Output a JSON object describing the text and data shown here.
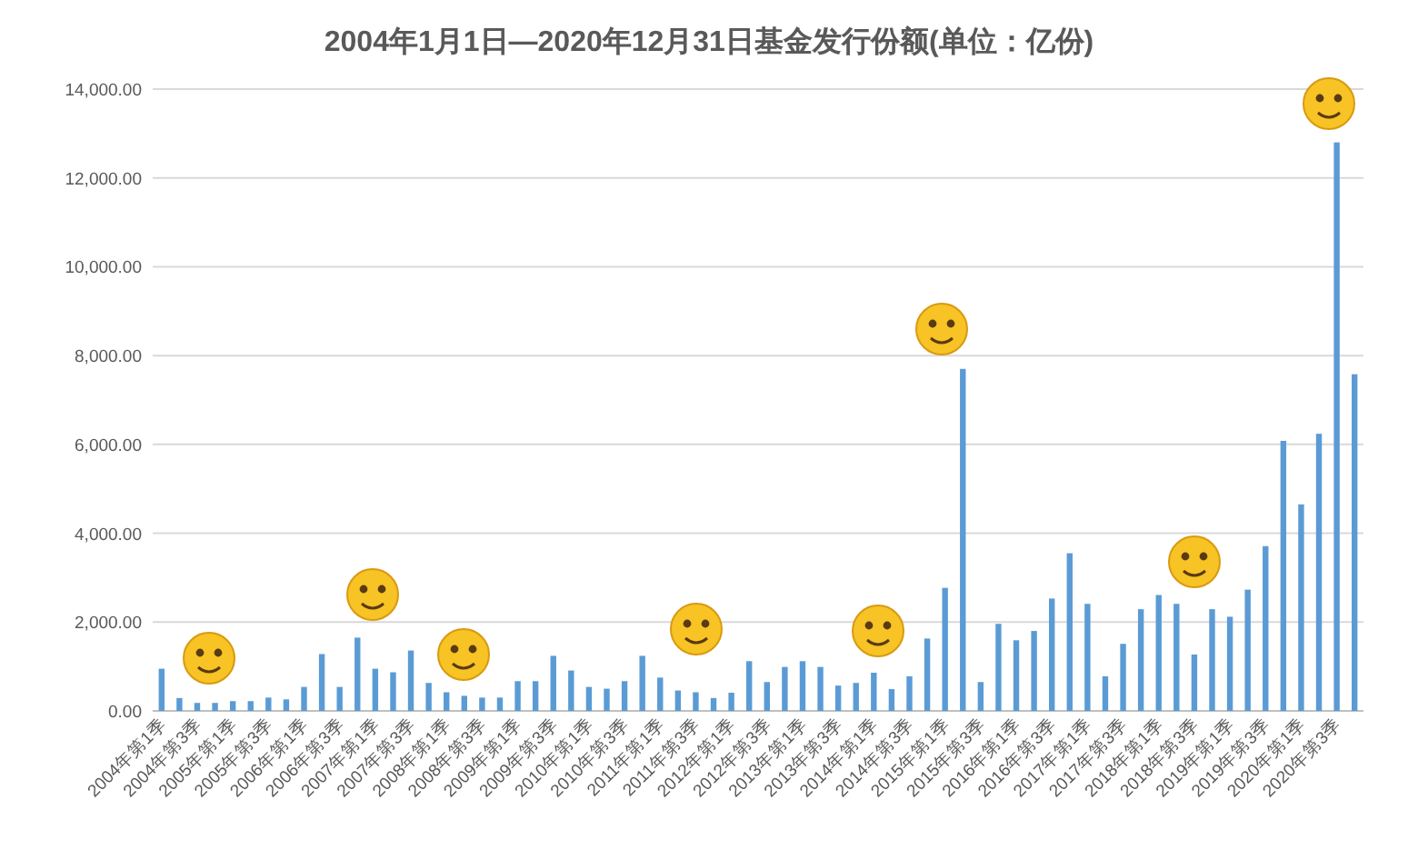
{
  "chart_data": {
    "type": "bar",
    "title": "2004年1月1日—2020年12月31日基金发行份额(单位：亿份)",
    "categories": [
      "2004年第1季",
      null,
      "2004年第3季",
      null,
      "2005年第1季",
      null,
      "2005年第3季",
      null,
      "2006年第1季",
      null,
      "2006年第3季",
      null,
      "2007年第1季",
      null,
      "2007年第3季",
      null,
      "2008年第1季",
      null,
      "2008年第3季",
      null,
      "2009年第1季",
      null,
      "2009年第3季",
      null,
      "2010年第1季",
      null,
      "2010年第3季",
      null,
      "2011年第1季",
      null,
      "2011年第3季",
      null,
      "2012年第1季",
      null,
      "2012年第3季",
      null,
      "2013年第1季",
      null,
      "2013年第3季",
      null,
      "2014年第1季",
      null,
      "2014年第3季",
      null,
      "2015年第1季",
      null,
      "2015年第3季",
      null,
      "2016年第1季",
      null,
      "2016年第3季",
      null,
      "2017年第1季",
      null,
      "2017年第3季",
      null,
      "2018年第1季",
      null,
      "2018年第3季",
      null,
      "2019年第1季",
      null,
      "2019年第3季",
      null,
      "2020年第1季",
      null,
      "2020年第3季",
      null
    ],
    "values": [
      950,
      290,
      180,
      180,
      220,
      220,
      300,
      260,
      540,
      1280,
      540,
      1650,
      950,
      870,
      1360,
      630,
      420,
      340,
      300,
      300,
      670,
      670,
      1240,
      910,
      540,
      500,
      670,
      1240,
      750,
      460,
      420,
      290,
      410,
      1120,
      650,
      990,
      1120,
      990,
      570,
      630,
      860,
      490,
      780,
      1630,
      2770,
      7700,
      650,
      1960,
      1590,
      1800,
      2530,
      3550,
      2410,
      780,
      1510,
      2290,
      2610,
      2410,
      1270,
      2290,
      2120,
      2730,
      3710,
      6080,
      4650,
      6240,
      12800,
      7580
    ],
    "color": "#5b9bd5",
    "ylim": [
      0,
      14000
    ],
    "yticks": [
      {
        "value": 0,
        "label": "0.00"
      },
      {
        "value": 2000,
        "label": "2,000.00"
      },
      {
        "value": 4000,
        "label": "4,000.00"
      },
      {
        "value": 6000,
        "label": "6,000.00"
      },
      {
        "value": 8000,
        "label": "8,000.00"
      },
      {
        "value": 10000,
        "label": "10,000.00"
      },
      {
        "value": 12000,
        "label": "12,000.00"
      },
      {
        "value": 14000,
        "label": "14,000.00"
      }
    ],
    "grid": "y"
  }
}
